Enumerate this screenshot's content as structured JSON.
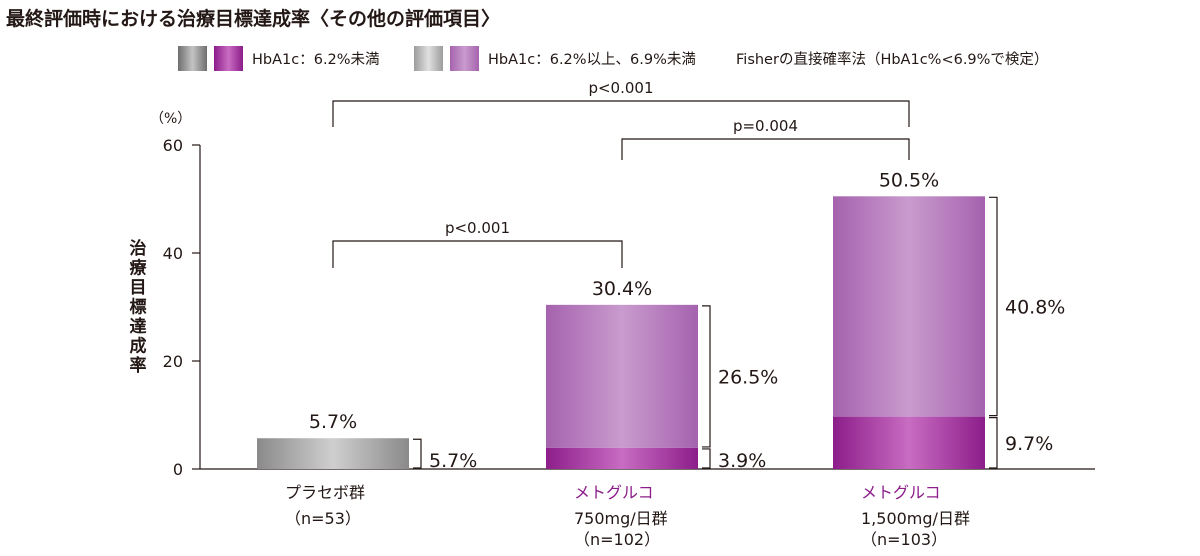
{
  "page": {
    "title": "最終評価時における治療目標達成率〈その他の評価項目〉"
  },
  "legend": {
    "items": [
      {
        "label": "HbA1c：6.2%未満",
        "swatches": [
          "gray-dark",
          "purple-dark"
        ]
      },
      {
        "label": "HbA1c：6.2%以上、6.9%未満",
        "swatches": [
          "gray-light",
          "purple-light"
        ]
      }
    ],
    "note": "Fisherの直接確率法（HbA1c%<6.9%で検定）"
  },
  "colors": {
    "gray_dark_edge": "#6e6e6e",
    "gray_dark_mid": "#c4c4c4",
    "gray_light_edge": "#9c9c9c",
    "gray_light_mid": "#e0e0e0",
    "purple_dark_edge": "#8c1d8a",
    "purple_dark_mid": "#c86cc2",
    "purple_light_edge": "#a562ae",
    "purple_light_mid": "#c99bce",
    "text": "#231815",
    "category_accent": "#8c1d8a"
  },
  "chart_data": {
    "type": "bar",
    "stacked": true,
    "ylabel": "治療目標達成率",
    "yunit": "（%）",
    "ylim": [
      0,
      60
    ],
    "yticks": [
      0,
      20,
      40,
      60
    ],
    "grid": false,
    "legend_position": "top",
    "categories": [
      {
        "name": "プラセボ群",
        "sub": [
          "（n=53）"
        ],
        "accent": false
      },
      {
        "name": "メトグルコ",
        "sub": [
          "750mg/日群",
          "（n=102）"
        ],
        "accent": true
      },
      {
        "name": "メトグルコ",
        "sub": [
          "1,500mg/日群",
          "（n=103）"
        ],
        "accent": true
      }
    ],
    "series": [
      {
        "name": "HbA1c：6.2%未満",
        "values": [
          5.7,
          3.9,
          9.7
        ],
        "labels": [
          "5.7%",
          "3.9%",
          "9.7%"
        ]
      },
      {
        "name": "HbA1c：6.2%以上、6.9%未満",
        "values": [
          0,
          26.5,
          40.8
        ],
        "labels": [
          "",
          "26.5%",
          "40.8%"
        ]
      }
    ],
    "totals": [
      5.7,
      30.4,
      50.5
    ],
    "total_labels": [
      "5.7%",
      "30.4%",
      "50.5%"
    ],
    "comparisons": [
      {
        "from": 0,
        "to": 1,
        "label": "p<0.001"
      },
      {
        "from": 1,
        "to": 2,
        "label": "p=0.004"
      },
      {
        "from": 0,
        "to": 2,
        "label": "p<0.001"
      }
    ]
  }
}
